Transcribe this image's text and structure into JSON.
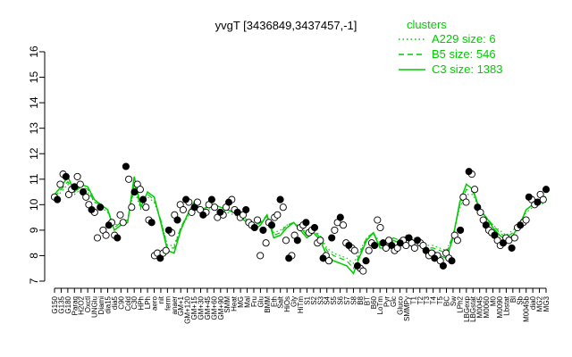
{
  "chart_data": {
    "type": "line",
    "title": "yvgT [3436849,3437457,-1]",
    "xlabel": "",
    "ylabel": "",
    "ylim": [
      7,
      16
    ],
    "y_ticks": [
      7,
      8,
      9,
      10,
      11,
      12,
      13,
      14,
      15,
      16
    ],
    "grid": false,
    "legend": {
      "title": "clusters",
      "position": "top-right",
      "color": "#00cc00",
      "entries": [
        {
          "label": "A229 size: 6",
          "style": "dotted"
        },
        {
          "label": "B5 size: 546",
          "style": "dashed"
        },
        {
          "label": "C3 size: 1383",
          "style": "solid"
        }
      ]
    },
    "x_labels": [
      "G150",
      "G135",
      "G180",
      "Paraq",
      "H2O2",
      "Oxctl",
      "UNGlu",
      "Diami",
      "dia15",
      "dia5",
      "C90",
      "Cold",
      "C30",
      "HPh",
      "LPh",
      "aero",
      "nit",
      "ferm",
      "anaer",
      "GM+1",
      "GM+120",
      "GM+15",
      "GM+30",
      "GM+45",
      "GM+60",
      "GM+90",
      "SMM",
      "Heat",
      "MG",
      "Mal",
      "Fru",
      "Glu",
      "BMM",
      "Eth",
      "Salt",
      "HiOs",
      "Gly",
      "HiTm",
      "S1",
      "S2",
      "S3",
      "S4",
      "S5",
      "S6",
      "S7",
      "S8",
      "B8",
      "BT",
      "B60",
      "LoTm",
      "Pyr",
      "Glc",
      "Gluco",
      "SMMPy",
      "T1",
      "T2",
      "T3",
      "T4",
      "T5",
      "BC",
      "Sw",
      "LPh2",
      "LBGexp",
      "LBGstat",
      "M0045",
      "M0060",
      "M0",
      "M0090",
      "Lbstat",
      "Bl",
      "Sb",
      "M0045b",
      "dia0",
      "MG2",
      "MG3"
    ],
    "series": [
      {
        "name": "",
        "style": "solid",
        "color": "#00cc00",
        "values": [
          10.4,
          10.7,
          11.1,
          10.5,
          10.8,
          10.7,
          10.2,
          10.0,
          9.8,
          9.0,
          9.2,
          9.3,
          11.1,
          9.9,
          10.5,
          10.3,
          9.3,
          8.2,
          8.1,
          9.0,
          9.6,
          10.1,
          9.8,
          9.9,
          10.0,
          9.9,
          9.8,
          9.7,
          9.5,
          9.3,
          9.0,
          9.2,
          9.6,
          8.7,
          8.8,
          9.1,
          9.3,
          9.0,
          8.7,
          8.9,
          8.6,
          8.0,
          7.8,
          7.7,
          7.6,
          7.3,
          8.0,
          8.6,
          8.9,
          8.3,
          8.3,
          8.6,
          8.5,
          8.8,
          8.6,
          8.4,
          8.1,
          8.2,
          8.0,
          7.9,
          8.7,
          10.1,
          10.8,
          10.6,
          9.8,
          9.5,
          9.1,
          8.8,
          8.6,
          8.8,
          9.2,
          9.8,
          10.0,
          10.2,
          10.3
        ]
      },
      {
        "name": "",
        "style": "dashed",
        "color": "#00cc00",
        "values": [
          10.3,
          10.6,
          10.9,
          10.5,
          10.7,
          10.6,
          10.1,
          10.0,
          9.8,
          9.1,
          9.3,
          9.4,
          10.8,
          9.9,
          10.4,
          10.2,
          9.4,
          8.3,
          8.3,
          9.1,
          9.6,
          10.0,
          9.8,
          9.9,
          10.0,
          9.9,
          9.8,
          9.7,
          9.6,
          9.4,
          9.1,
          9.3,
          9.6,
          8.8,
          8.9,
          9.2,
          9.3,
          9.1,
          8.8,
          9.0,
          8.7,
          8.2,
          8.0,
          7.9,
          7.8,
          7.5,
          8.1,
          8.7,
          8.9,
          8.4,
          8.4,
          8.7,
          8.6,
          8.8,
          8.7,
          8.5,
          8.3,
          8.3,
          8.2,
          8.1,
          8.8,
          10.0,
          10.6,
          10.5,
          9.8,
          9.5,
          9.2,
          8.9,
          8.7,
          8.9,
          9.2,
          9.8,
          10.0,
          10.1,
          10.2
        ]
      },
      {
        "name": "",
        "style": "dotted",
        "color": "#00cc00",
        "values": [
          10.2,
          10.5,
          10.8,
          10.4,
          10.6,
          10.5,
          10.1,
          9.9,
          9.7,
          9.2,
          9.3,
          9.4,
          10.6,
          9.8,
          10.3,
          10.1,
          9.4,
          8.4,
          8.4,
          9.1,
          9.5,
          9.9,
          9.7,
          9.8,
          9.9,
          9.8,
          9.7,
          9.6,
          9.5,
          9.4,
          9.2,
          9.3,
          9.5,
          8.9,
          9.0,
          9.2,
          9.3,
          9.1,
          8.9,
          9.0,
          8.8,
          8.3,
          8.1,
          8.0,
          7.9,
          7.7,
          8.2,
          8.7,
          8.9,
          8.5,
          8.5,
          8.7,
          8.6,
          8.8,
          8.7,
          8.6,
          8.4,
          8.4,
          8.3,
          8.2,
          8.8,
          9.9,
          10.4,
          10.4,
          9.8,
          9.5,
          9.2,
          9.0,
          8.8,
          9.0,
          9.2,
          9.7,
          9.9,
          10.0,
          10.1
        ]
      }
    ],
    "points": [
      10.3,
      10.2,
      10.8,
      11.2,
      11.1,
      10.4,
      10.6,
      10.7,
      11.1,
      10.8,
      10.5,
      10.3,
      10.0,
      9.8,
      9.7,
      8.7,
      9.9,
      9.0,
      8.8,
      9.2,
      9.3,
      8.8,
      8.7,
      9.6,
      9.3,
      11.5,
      11.0,
      9.9,
      10.5,
      10.8,
      10.6,
      10.2,
      9.9,
      9.4,
      9.3,
      8.0,
      8.1,
      7.9,
      8.1,
      8.2,
      9.0,
      8.9,
      9.6,
      9.4,
      10.0,
      9.8,
      10.2,
      10.1,
      9.7,
      9.9,
      10.1,
      9.8,
      9.6,
      9.7,
      10.0,
      10.2,
      9.9,
      9.5,
      9.7,
      9.6,
      9.9,
      10.1,
      10.2,
      9.8,
      9.7,
      9.5,
      9.6,
      9.8,
      9.3,
      9.2,
      9.1,
      9.4,
      8.0,
      9.0,
      8.5,
      9.3,
      9.2,
      9.5,
      9.6,
      10.2,
      9.9,
      8.6,
      7.9,
      8.0,
      8.8,
      8.6,
      9.1,
      9.2,
      9.3,
      8.9,
      9.0,
      9.1,
      8.5,
      8.6,
      7.9,
      8.0,
      7.8,
      8.7,
      9.0,
      9.3,
      9.5,
      9.2,
      8.5,
      8.4,
      8.3,
      8.2,
      7.6,
      7.5,
      7.4,
      7.8,
      8.2,
      8.5,
      8.4,
      9.4,
      9.1,
      8.5,
      8.3,
      8.6,
      8.4,
      8.2,
      8.3,
      8.5,
      8.6,
      8.4,
      8.7,
      8.5,
      8.3,
      8.6,
      8.5,
      8.4,
      8.2,
      8.0,
      8.1,
      7.9,
      8.0,
      7.8,
      7.6,
      8.1,
      7.9,
      7.8,
      8.8,
      8.6,
      9.0,
      10.3,
      10.1,
      11.3,
      11.2,
      10.6,
      9.9,
      9.7,
      9.4,
      9.2,
      9.0,
      8.9,
      8.8,
      8.6,
      8.4,
      8.5,
      8.7,
      8.6,
      8.3,
      8.7,
      9.1,
      9.2,
      9.3,
      9.4,
      10.3,
      10.2,
      10.0,
      10.1,
      10.4,
      10.2,
      10.6
    ]
  }
}
